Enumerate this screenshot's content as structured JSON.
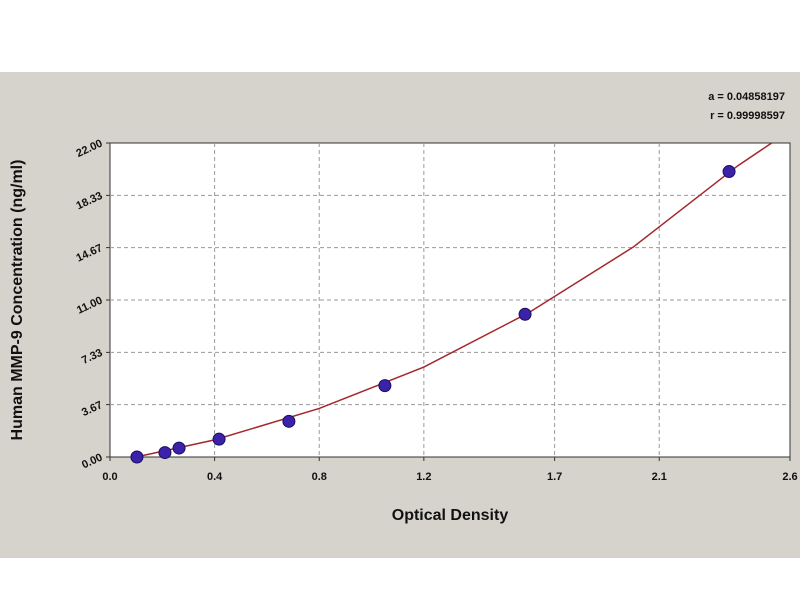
{
  "chart_data": {
    "type": "scatter",
    "x_label": "Optical Density",
    "y_label": "Human MMP-9 Concentration (ng/ml)",
    "annotations": [
      "a = 0.04858197",
      "r = 0.99998597"
    ],
    "xlim": [
      0,
      2.6
    ],
    "ylim": [
      0,
      22
    ],
    "xticks": [
      {
        "value": 0,
        "label": "0.0"
      },
      0.4,
      0.8,
      1.2,
      1.7,
      2.1,
      2.6
    ],
    "yticks": [
      {
        "value": 0,
        "label": "0.00"
      },
      {
        "value": 3.67,
        "label": "3.67"
      },
      {
        "value": 7.33,
        "label": "7.33"
      },
      {
        "value": 11,
        "label": "11.00"
      },
      {
        "value": 14.67,
        "label": "14.67"
      },
      {
        "value": 18.33,
        "label": "18.33"
      },
      {
        "value": 22,
        "label": "22.00"
      }
    ],
    "grid": true,
    "series": [
      {
        "type": "scatter",
        "color": "#3b22a8",
        "x": [
          0.103,
          0.21,
          0.264,
          0.417,
          0.684,
          1.051,
          1.587,
          2.367
        ],
        "values": [
          0,
          0.31,
          0.625,
          1.25,
          2.5,
          5,
          10,
          20
        ]
      },
      {
        "type": "line",
        "color": "#a3282c",
        "x": [
          0.1,
          0.4,
          0.8,
          1.2,
          1.6,
          2.0,
          2.4,
          2.53
        ],
        "values": [
          0,
          1.2,
          3.4,
          6.3,
          10.1,
          14.7,
          20.4,
          22
        ]
      }
    ]
  }
}
